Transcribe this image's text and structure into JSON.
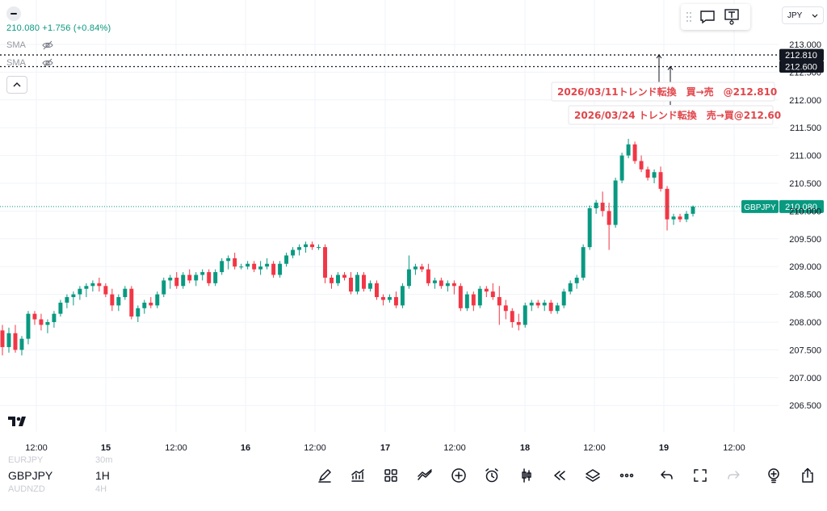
{
  "header": {
    "price_change": "210.080 +1.756 (+0.84%)",
    "sma_labels": [
      "SMA",
      "SMA"
    ],
    "currency": "JPY"
  },
  "bottom_bar": {
    "symbol": "GBPJPY",
    "interval": "1H",
    "symbol_ghost_above": "EURJPY",
    "symbol_ghost_below": "AUDNZD",
    "interval_ghost_above": "30m",
    "interval_ghost_below": "4H",
    "tools": [
      "pen-icon",
      "indicators-icon",
      "templates-icon",
      "compare-icon",
      "add-icon",
      "alert-icon",
      "bar-style-icon",
      "replay-icon",
      "layers-icon",
      "more-icon",
      "undo-icon",
      "fullscreen-icon",
      "redo-icon",
      "ideas-icon",
      "share-icon"
    ]
  },
  "colors": {
    "up": "#089981",
    "down": "#f23645",
    "annotation": "#e0464b"
  },
  "chart_data": {
    "type": "candlestick",
    "symbol": "GBPJPY",
    "title": "",
    "x_labels": [
      "12:00",
      "15",
      "12:00",
      "16",
      "12:00",
      "17",
      "12:00",
      "18",
      "12:00",
      "19",
      "12:00"
    ],
    "y_labels": [
      "213.000",
      "212.500",
      "212.000",
      "211.500",
      "211.000",
      "210.500",
      "210.000",
      "209.500",
      "209.000",
      "208.500",
      "208.000",
      "207.500",
      "207.000",
      "206.500"
    ],
    "ylim": [
      206.2,
      213.4
    ],
    "last_price": 210.08,
    "last_price_label": "210.080",
    "horizontal_lines": [
      {
        "value": 212.81,
        "label": "212.810"
      },
      {
        "value": 212.6,
        "label": "212.600"
      }
    ],
    "annotations": [
      {
        "text": "2026/03/11トレンド転換　買→売　@212.810"
      },
      {
        "text": "2026/03/24 トレンド転換　売→買@212.60"
      }
    ],
    "candles": [
      [
        207.85,
        207.95,
        207.4,
        207.55
      ],
      [
        207.55,
        207.9,
        207.45,
        207.8
      ],
      [
        207.8,
        207.95,
        207.45,
        207.5
      ],
      [
        207.5,
        207.75,
        207.4,
        207.7
      ],
      [
        207.7,
        208.2,
        207.6,
        208.15
      ],
      [
        208.15,
        208.2,
        207.95,
        208.05
      ],
      [
        208.05,
        208.15,
        207.85,
        207.95
      ],
      [
        207.95,
        208.05,
        207.8,
        208.0
      ],
      [
        208.0,
        208.2,
        207.9,
        208.15
      ],
      [
        208.15,
        208.4,
        208.1,
        208.35
      ],
      [
        208.35,
        208.5,
        208.25,
        208.45
      ],
      [
        208.45,
        208.55,
        208.3,
        208.5
      ],
      [
        208.5,
        208.65,
        208.4,
        208.6
      ],
      [
        208.6,
        208.7,
        208.45,
        208.65
      ],
      [
        208.65,
        208.75,
        208.55,
        208.7
      ],
      [
        208.7,
        208.8,
        208.55,
        208.65
      ],
      [
        208.65,
        208.7,
        208.45,
        208.5
      ],
      [
        208.5,
        208.6,
        208.2,
        208.3
      ],
      [
        208.3,
        208.5,
        208.2,
        208.45
      ],
      [
        208.45,
        208.65,
        208.4,
        208.6
      ],
      [
        208.6,
        208.65,
        208.05,
        208.1
      ],
      [
        208.1,
        208.3,
        208.0,
        208.25
      ],
      [
        208.25,
        208.4,
        208.15,
        208.35
      ],
      [
        208.35,
        208.45,
        208.25,
        208.3
      ],
      [
        208.3,
        208.55,
        208.25,
        208.5
      ],
      [
        208.5,
        208.8,
        208.45,
        208.75
      ],
      [
        208.75,
        208.85,
        208.6,
        208.8
      ],
      [
        208.8,
        208.9,
        208.6,
        208.65
      ],
      [
        208.65,
        208.9,
        208.6,
        208.85
      ],
      [
        208.85,
        208.95,
        208.7,
        208.75
      ],
      [
        208.75,
        208.9,
        208.65,
        208.85
      ],
      [
        208.85,
        208.95,
        208.75,
        208.9
      ],
      [
        208.9,
        208.95,
        208.65,
        208.7
      ],
      [
        208.7,
        208.95,
        208.65,
        208.9
      ],
      [
        208.9,
        209.15,
        208.85,
        209.1
      ],
      [
        209.1,
        209.2,
        208.95,
        209.15
      ],
      [
        209.15,
        209.25,
        208.95,
        209.0
      ],
      [
        209.0,
        209.05,
        208.95,
        209.0
      ],
      [
        209.0,
        209.1,
        208.95,
        209.05
      ],
      [
        209.05,
        209.1,
        208.9,
        208.95
      ],
      [
        208.95,
        209.1,
        208.85,
        209.0
      ],
      [
        209.0,
        209.15,
        208.95,
        209.05
      ],
      [
        209.05,
        209.1,
        208.8,
        208.85
      ],
      [
        208.85,
        209.1,
        208.8,
        209.05
      ],
      [
        209.05,
        209.25,
        209.0,
        209.2
      ],
      [
        209.2,
        209.35,
        209.15,
        209.3
      ],
      [
        209.3,
        209.4,
        209.2,
        209.35
      ],
      [
        209.35,
        209.45,
        209.25,
        209.4
      ],
      [
        209.4,
        209.45,
        209.3,
        209.35
      ],
      [
        209.35,
        209.4,
        209.3,
        209.35
      ],
      [
        209.35,
        209.4,
        208.7,
        208.8
      ],
      [
        208.8,
        208.85,
        208.6,
        208.7
      ],
      [
        208.7,
        208.9,
        208.65,
        208.85
      ],
      [
        208.85,
        208.9,
        208.75,
        208.8
      ],
      [
        208.8,
        208.9,
        208.5,
        208.55
      ],
      [
        208.55,
        208.9,
        208.5,
        208.85
      ],
      [
        208.85,
        208.9,
        208.55,
        208.6
      ],
      [
        208.6,
        208.75,
        208.55,
        208.7
      ],
      [
        208.7,
        208.75,
        208.4,
        208.45
      ],
      [
        208.45,
        208.5,
        208.3,
        208.4
      ],
      [
        208.4,
        208.5,
        208.35,
        208.45
      ],
      [
        208.45,
        208.55,
        208.25,
        208.3
      ],
      [
        208.3,
        208.7,
        208.25,
        208.65
      ],
      [
        208.65,
        209.2,
        208.6,
        208.95
      ],
      [
        208.95,
        209.05,
        208.85,
        209.0
      ],
      [
        209.0,
        209.05,
        208.9,
        208.95
      ],
      [
        208.95,
        209.05,
        208.65,
        208.7
      ],
      [
        208.7,
        208.8,
        208.6,
        208.75
      ],
      [
        208.75,
        208.8,
        208.6,
        208.65
      ],
      [
        208.65,
        208.75,
        208.55,
        208.7
      ],
      [
        208.7,
        208.75,
        208.5,
        208.65
      ],
      [
        208.65,
        208.7,
        208.2,
        208.25
      ],
      [
        208.25,
        208.55,
        208.2,
        208.5
      ],
      [
        208.5,
        208.55,
        208.2,
        208.3
      ],
      [
        208.3,
        208.65,
        208.25,
        208.6
      ],
      [
        208.6,
        208.65,
        208.45,
        208.55
      ],
      [
        208.55,
        208.7,
        208.4,
        208.45
      ],
      [
        208.45,
        208.65,
        207.95,
        208.3
      ],
      [
        208.3,
        208.4,
        208.05,
        208.2
      ],
      [
        208.2,
        208.25,
        207.9,
        208.0
      ],
      [
        208.0,
        208.15,
        207.85,
        207.95
      ],
      [
        207.95,
        208.35,
        207.9,
        208.3
      ],
      [
        208.3,
        208.4,
        208.2,
        208.35
      ],
      [
        208.35,
        208.4,
        208.25,
        208.3
      ],
      [
        208.3,
        208.4,
        208.2,
        208.35
      ],
      [
        208.35,
        208.4,
        208.15,
        208.2
      ],
      [
        208.2,
        208.35,
        208.15,
        208.3
      ],
      [
        208.3,
        208.6,
        208.25,
        208.55
      ],
      [
        208.55,
        208.75,
        208.5,
        208.7
      ],
      [
        208.7,
        208.85,
        208.6,
        208.8
      ],
      [
        208.8,
        209.4,
        208.75,
        209.35
      ],
      [
        209.35,
        210.1,
        209.3,
        210.05
      ],
      [
        210.05,
        210.2,
        209.95,
        210.15
      ],
      [
        210.15,
        210.35,
        209.9,
        210.0
      ],
      [
        210.0,
        210.15,
        209.3,
        209.75
      ],
      [
        209.75,
        210.6,
        209.7,
        210.55
      ],
      [
        210.55,
        211.05,
        210.5,
        211.0
      ],
      [
        211.0,
        211.3,
        210.95,
        211.2
      ],
      [
        211.2,
        211.25,
        210.85,
        210.9
      ],
      [
        210.9,
        211.0,
        210.7,
        210.75
      ],
      [
        210.75,
        210.8,
        210.55,
        210.6
      ],
      [
        210.6,
        210.75,
        210.5,
        210.7
      ],
      [
        210.7,
        210.8,
        210.35,
        210.4
      ],
      [
        210.4,
        210.45,
        209.65,
        209.85
      ],
      [
        209.85,
        209.95,
        209.75,
        209.9
      ],
      [
        209.9,
        209.95,
        209.8,
        209.85
      ],
      [
        209.85,
        210.0,
        209.8,
        209.95
      ],
      [
        209.95,
        210.1,
        209.9,
        210.08
      ]
    ]
  }
}
